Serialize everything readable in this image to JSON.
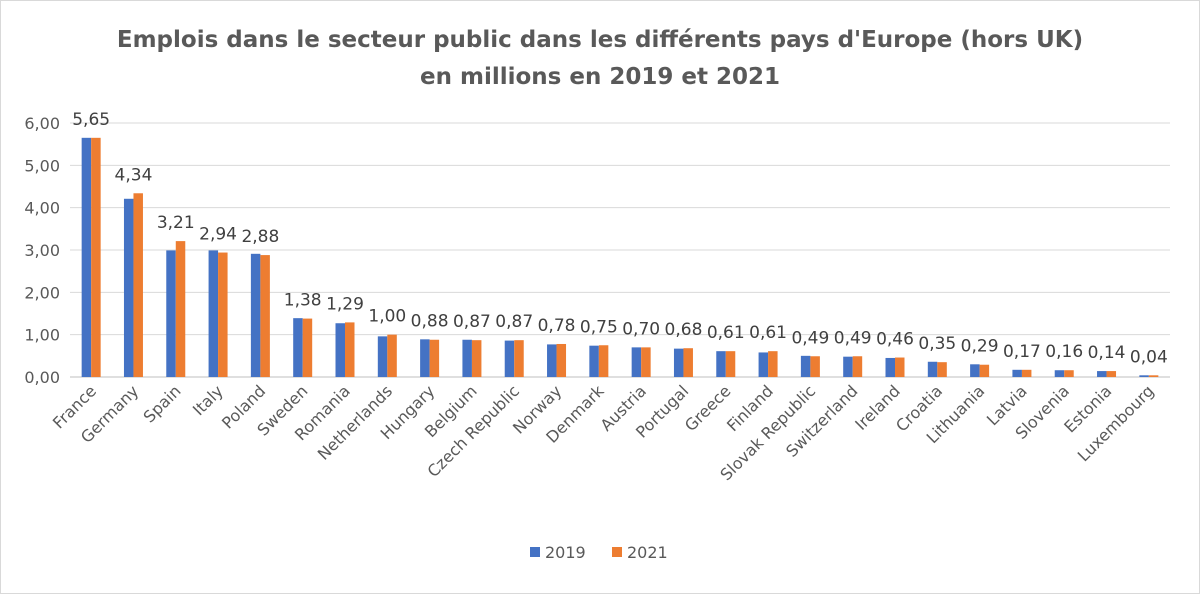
{
  "chart_data": {
    "type": "bar",
    "title": "Emplois dans le secteur public dans les différents pays d'Europe (hors UK) en millions en 2019 et 2021",
    "xlabel": "",
    "ylabel": "",
    "ylim": [
      0,
      6
    ],
    "yticks": [
      "0,00",
      "1,00",
      "2,00",
      "3,00",
      "4,00",
      "5,00",
      "6,00"
    ],
    "grid": true,
    "legend_position": "bottom",
    "categories": [
      "France",
      "Germany",
      "Spain",
      "Italy",
      "Poland",
      "Sweden",
      "Romania",
      "Netherlands",
      "Hungary",
      "Belgium",
      "Czech Republic",
      "Norway",
      "Denmark",
      "Austria",
      "Portugal",
      "Greece",
      "Finland",
      "Slovak Republic",
      "Switzerland",
      "Ireland",
      "Croatia",
      "Lithuania",
      "Latvia",
      "Slovenia",
      "Estonia",
      "Luxembourg"
    ],
    "series": [
      {
        "name": "2019",
        "color": "#4472c4",
        "values": [
          5.65,
          4.21,
          2.99,
          2.99,
          2.91,
          1.39,
          1.27,
          0.96,
          0.89,
          0.88,
          0.86,
          0.77,
          0.74,
          0.7,
          0.67,
          0.61,
          0.58,
          0.5,
          0.48,
          0.45,
          0.36,
          0.3,
          0.17,
          0.16,
          0.14,
          0.04
        ]
      },
      {
        "name": "2021",
        "color": "#ed7d31",
        "values": [
          5.65,
          4.34,
          3.21,
          2.94,
          2.88,
          1.38,
          1.29,
          1.0,
          0.88,
          0.87,
          0.87,
          0.78,
          0.75,
          0.7,
          0.68,
          0.61,
          0.61,
          0.49,
          0.49,
          0.46,
          0.35,
          0.29,
          0.17,
          0.16,
          0.14,
          0.04
        ]
      }
    ],
    "data_labels": [
      "5,65",
      "4,34",
      "3,21",
      "2,94",
      "2,88",
      "1,38",
      "1,29",
      "1,00",
      "0,88",
      "0,87",
      "0,87",
      "0,78",
      "0,75",
      "0,70",
      "0,68",
      "0,61",
      "0,61",
      "0,49",
      "0,49",
      "0,46",
      "0,35",
      "0,29",
      "0,17",
      "0,16",
      "0,14",
      "0,04"
    ]
  }
}
